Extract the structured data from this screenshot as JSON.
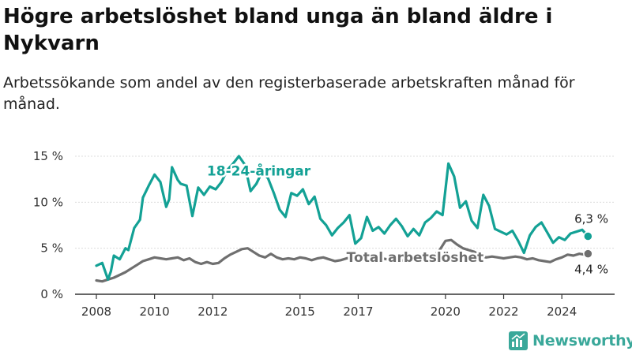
{
  "header": {
    "title": "Högre arbetslöshet bland unga än bland äldre i Nykvarn",
    "subtitle": "Arbetssökande som andel av den registerbaserade arbetskraften månad för månad."
  },
  "brand": {
    "name": "Newsworthy",
    "icon": "newsworthy-logo-icon"
  },
  "colors": {
    "youth": "#13a195",
    "total": "#6f6f6f",
    "axis": "#333333"
  },
  "chart_data": {
    "type": "line",
    "xlabel": "",
    "ylabel": "",
    "xlim": [
      2008.0,
      2025.0
    ],
    "ylim": [
      0,
      15
    ],
    "y_ticks": [
      {
        "value": 0,
        "label": "0 %"
      },
      {
        "value": 5,
        "label": "5 %"
      },
      {
        "value": 10,
        "label": "10 %"
      },
      {
        "value": 15,
        "label": "15 %"
      }
    ],
    "x_ticks": [
      {
        "value": 2008,
        "label": "2008"
      },
      {
        "value": 2010,
        "label": "2010"
      },
      {
        "value": 2012,
        "label": "2012"
      },
      {
        "value": 2015,
        "label": "2015"
      },
      {
        "value": 2017,
        "label": "2017"
      },
      {
        "value": 2020,
        "label": "2020"
      },
      {
        "value": 2022,
        "label": "2022"
      },
      {
        "value": 2024,
        "label": "2024"
      }
    ],
    "grid": true,
    "legend": "inline-labels",
    "series": [
      {
        "name": "18-24-åringar",
        "color": "#13a195",
        "end_label": "6,3 %",
        "x": [
          2008.0,
          2008.2,
          2008.4,
          2008.5,
          2008.6,
          2008.8,
          2009.0,
          2009.1,
          2009.3,
          2009.5,
          2009.6,
          2009.8,
          2009.9,
          2010.0,
          2010.2,
          2010.4,
          2010.5,
          2010.6,
          2010.8,
          2010.9,
          2011.1,
          2011.3,
          2011.5,
          2011.7,
          2011.9,
          2012.1,
          2012.3,
          2012.5,
          2012.7,
          2012.9,
          2013.1,
          2013.3,
          2013.5,
          2013.7,
          2013.9,
          2014.1,
          2014.3,
          2014.5,
          2014.7,
          2014.9,
          2015.1,
          2015.3,
          2015.5,
          2015.7,
          2015.9,
          2016.1,
          2016.3,
          2016.5,
          2016.7,
          2016.9,
          2017.1,
          2017.3,
          2017.5,
          2017.7,
          2017.9,
          2018.1,
          2018.3,
          2018.5,
          2018.7,
          2018.9,
          2019.1,
          2019.3,
          2019.5,
          2019.7,
          2019.9,
          2020.1,
          2020.3,
          2020.5,
          2020.7,
          2020.9,
          2021.1,
          2021.3,
          2021.5,
          2021.7,
          2021.9,
          2022.1,
          2022.3,
          2022.5,
          2022.7,
          2022.9,
          2023.1,
          2023.3,
          2023.5,
          2023.7,
          2023.9,
          2024.1,
          2024.3,
          2024.5,
          2024.7,
          2024.9
        ],
        "y": [
          3.1,
          3.4,
          1.6,
          2.5,
          4.2,
          3.8,
          5.0,
          4.8,
          7.2,
          8.1,
          10.5,
          11.8,
          12.4,
          13.0,
          12.2,
          9.5,
          10.3,
          13.8,
          12.4,
          12.0,
          11.8,
          8.5,
          11.6,
          10.8,
          11.7,
          11.4,
          12.2,
          13.5,
          14.2,
          15.0,
          14.1,
          11.2,
          12.0,
          13.3,
          12.6,
          11.0,
          9.2,
          8.4,
          11.0,
          10.7,
          11.4,
          9.8,
          10.6,
          8.2,
          7.5,
          6.4,
          7.2,
          7.8,
          8.6,
          5.5,
          6.1,
          8.4,
          6.9,
          7.3,
          6.6,
          7.5,
          8.2,
          7.4,
          6.3,
          7.1,
          6.4,
          7.8,
          8.3,
          9.0,
          8.6,
          14.2,
          12.8,
          9.4,
          10.1,
          8.0,
          7.2,
          10.8,
          9.6,
          7.1,
          6.8,
          6.5,
          6.9,
          5.8,
          4.5,
          6.4,
          7.3,
          7.8,
          6.7,
          5.6,
          6.2,
          5.9,
          6.6,
          6.8,
          7.0,
          6.3
        ]
      },
      {
        "name": "Total arbetslöshet",
        "color": "#6f6f6f",
        "end_label": "4,4 %",
        "x": [
          2008.0,
          2008.2,
          2008.4,
          2008.6,
          2008.8,
          2009.0,
          2009.2,
          2009.4,
          2009.6,
          2009.8,
          2010.0,
          2010.2,
          2010.4,
          2010.6,
          2010.8,
          2011.0,
          2011.2,
          2011.4,
          2011.6,
          2011.8,
          2012.0,
          2012.2,
          2012.4,
          2012.6,
          2012.8,
          2013.0,
          2013.2,
          2013.4,
          2013.6,
          2013.8,
          2014.0,
          2014.2,
          2014.4,
          2014.6,
          2014.8,
          2015.0,
          2015.2,
          2015.4,
          2015.6,
          2015.8,
          2016.0,
          2016.2,
          2016.4,
          2016.6,
          2016.8,
          2017.0,
          2017.2,
          2017.4,
          2017.6,
          2017.8,
          2018.0,
          2018.2,
          2018.4,
          2018.6,
          2018.8,
          2019.0,
          2019.2,
          2019.4,
          2019.6,
          2019.8,
          2020.0,
          2020.2,
          2020.4,
          2020.6,
          2020.8,
          2021.0,
          2021.2,
          2021.4,
          2021.6,
          2021.8,
          2022.0,
          2022.2,
          2022.4,
          2022.6,
          2022.8,
          2023.0,
          2023.2,
          2023.4,
          2023.6,
          2023.8,
          2024.0,
          2024.2,
          2024.4,
          2024.6,
          2024.8,
          2024.9
        ],
        "y": [
          1.5,
          1.4,
          1.6,
          1.8,
          2.1,
          2.4,
          2.8,
          3.2,
          3.6,
          3.8,
          4.0,
          3.9,
          3.8,
          3.9,
          4.0,
          3.7,
          3.9,
          3.5,
          3.3,
          3.5,
          3.3,
          3.4,
          3.9,
          4.3,
          4.6,
          4.9,
          5.0,
          4.6,
          4.2,
          4.0,
          4.4,
          4.0,
          3.8,
          3.9,
          3.8,
          4.0,
          3.9,
          3.7,
          3.9,
          4.0,
          3.8,
          3.6,
          3.7,
          3.9,
          4.0,
          3.8,
          3.9,
          3.7,
          3.8,
          3.9,
          3.8,
          3.9,
          3.6,
          3.7,
          3.8,
          3.7,
          3.9,
          4.0,
          4.2,
          4.8,
          5.8,
          5.9,
          5.4,
          5.0,
          4.8,
          4.6,
          4.2,
          4.0,
          4.1,
          4.0,
          3.9,
          4.0,
          4.1,
          4.0,
          3.8,
          3.9,
          3.7,
          3.6,
          3.5,
          3.8,
          4.0,
          4.3,
          4.2,
          4.4,
          4.3,
          4.4
        ]
      }
    ],
    "annotations": [
      {
        "text": "18-24-åringar",
        "x": 2011.8,
        "y": 12.9,
        "series": 0
      },
      {
        "text": "Total arbetslöshet",
        "x": 2016.6,
        "y": 3.5,
        "series": 1
      }
    ]
  }
}
